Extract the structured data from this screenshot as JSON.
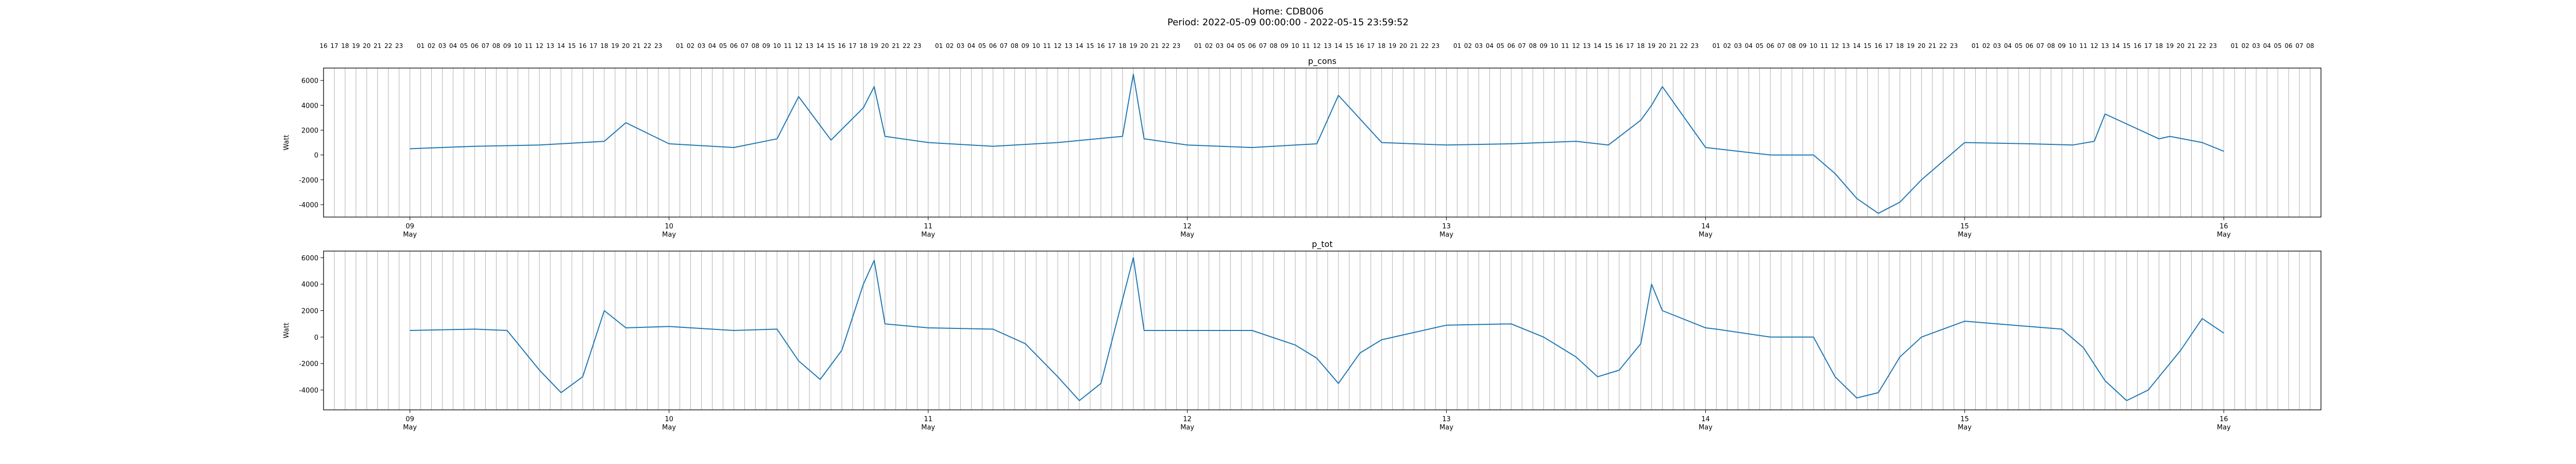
{
  "figure": {
    "title_line1": "Home: CDB006",
    "title_line2": "Period: 2022-05-09 00:00:00 - 2022-05-15 23:59:52"
  },
  "colors": {
    "series": "#1f77b4",
    "axes": "#000000",
    "hour_lines": "#b0b0b0"
  },
  "chart_data": [
    {
      "type": "line",
      "title": "p_cons",
      "ylabel": "Watt",
      "ylim": [
        -5000,
        7000
      ],
      "yticks": [
        -4000,
        -2000,
        0,
        2000,
        4000,
        6000
      ],
      "xlim": [
        "2022-05-08T16:00",
        "2022-05-16T09:00"
      ],
      "x_tick_labels": [
        {
          "x": "2022-05-09",
          "day": "09",
          "month": "May"
        },
        {
          "x": "2022-05-10",
          "day": "10",
          "month": "May"
        },
        {
          "x": "2022-05-11",
          "day": "11",
          "month": "May"
        },
        {
          "x": "2022-05-12",
          "day": "12",
          "month": "May"
        },
        {
          "x": "2022-05-13",
          "day": "13",
          "month": "May"
        },
        {
          "x": "2022-05-14",
          "day": "14",
          "month": "May"
        },
        {
          "x": "2022-05-15",
          "day": "15",
          "month": "May"
        },
        {
          "x": "2022-05-16",
          "day": "16",
          "month": "May"
        }
      ],
      "hour_axis": {
        "start": "2022-05-08T16:00",
        "end": "2022-05-16T08:00",
        "step_hours": 1
      },
      "grid": "vertical hourly lines",
      "x": [
        "2022-05-09T00:00",
        "2022-05-09T06:00",
        "2022-05-09T12:00",
        "2022-05-09T18:00",
        "2022-05-09T20:00",
        "2022-05-10T00:00",
        "2022-05-10T06:00",
        "2022-05-10T10:00",
        "2022-05-10T12:00",
        "2022-05-10T15:00",
        "2022-05-10T18:00",
        "2022-05-10T19:00",
        "2022-05-10T20:00",
        "2022-05-11T00:00",
        "2022-05-11T06:00",
        "2022-05-11T12:00",
        "2022-05-11T18:00",
        "2022-05-11T19:00",
        "2022-05-11T20:00",
        "2022-05-12T00:00",
        "2022-05-12T06:00",
        "2022-05-12T12:00",
        "2022-05-12T14:00",
        "2022-05-12T18:00",
        "2022-05-13T00:00",
        "2022-05-13T06:00",
        "2022-05-13T12:00",
        "2022-05-13T15:00",
        "2022-05-13T18:00",
        "2022-05-13T19:00",
        "2022-05-13T20:00",
        "2022-05-14T00:00",
        "2022-05-14T01:00",
        "2022-05-14T06:00",
        "2022-05-14T09:00",
        "2022-05-14T10:00",
        "2022-05-14T12:00",
        "2022-05-14T14:00",
        "2022-05-14T16:00",
        "2022-05-14T18:00",
        "2022-05-14T20:00",
        "2022-05-15T00:00",
        "2022-05-15T06:00",
        "2022-05-15T10:00",
        "2022-05-15T12:00",
        "2022-05-15T13:00",
        "2022-05-15T18:00",
        "2022-05-15T19:00",
        "2022-05-15T22:00",
        "2022-05-16T00:00"
      ],
      "values": [
        500,
        700,
        800,
        1100,
        2600,
        900,
        600,
        1300,
        4700,
        1200,
        3800,
        5500,
        1500,
        1000,
        700,
        1000,
        1500,
        6500,
        1300,
        800,
        600,
        900,
        4800,
        1000,
        800,
        900,
        1100,
        800,
        2800,
        4000,
        5500,
        600,
        500,
        0,
        0,
        0,
        -1500,
        -3500,
        -4700,
        -3800,
        -2000,
        1000,
        900,
        800,
        1100,
        3300,
        1300,
        1500,
        1000,
        300
      ]
    },
    {
      "type": "line",
      "title": "p_tot",
      "ylabel": "Watt",
      "ylim": [
        -5500,
        6500
      ],
      "yticks": [
        -4000,
        -2000,
        0,
        2000,
        4000,
        6000
      ],
      "xlim": [
        "2022-05-08T16:00",
        "2022-05-16T09:00"
      ],
      "x_tick_labels": [
        {
          "x": "2022-05-09",
          "day": "09",
          "month": "May"
        },
        {
          "x": "2022-05-10",
          "day": "10",
          "month": "May"
        },
        {
          "x": "2022-05-11",
          "day": "11",
          "month": "May"
        },
        {
          "x": "2022-05-12",
          "day": "12",
          "month": "May"
        },
        {
          "x": "2022-05-13",
          "day": "13",
          "month": "May"
        },
        {
          "x": "2022-05-14",
          "day": "14",
          "month": "May"
        },
        {
          "x": "2022-05-15",
          "day": "15",
          "month": "May"
        },
        {
          "x": "2022-05-16",
          "day": "16",
          "month": "May"
        }
      ],
      "hour_axis": {
        "start": "2022-05-08T16:00",
        "end": "2022-05-16T08:00",
        "step_hours": 1
      },
      "grid": "vertical hourly lines",
      "x": [
        "2022-05-09T00:00",
        "2022-05-09T06:00",
        "2022-05-09T09:00",
        "2022-05-09T12:00",
        "2022-05-09T14:00",
        "2022-05-09T16:00",
        "2022-05-09T18:00",
        "2022-05-09T20:00",
        "2022-05-10T00:00",
        "2022-05-10T06:00",
        "2022-05-10T10:00",
        "2022-05-10T12:00",
        "2022-05-10T14:00",
        "2022-05-10T16:00",
        "2022-05-10T18:00",
        "2022-05-10T19:00",
        "2022-05-10T20:00",
        "2022-05-11T00:00",
        "2022-05-11T06:00",
        "2022-05-11T09:00",
        "2022-05-11T12:00",
        "2022-05-11T14:00",
        "2022-05-11T16:00",
        "2022-05-11T19:00",
        "2022-05-11T20:00",
        "2022-05-12T00:00",
        "2022-05-12T06:00",
        "2022-05-12T10:00",
        "2022-05-12T12:00",
        "2022-05-12T14:00",
        "2022-05-12T16:00",
        "2022-05-12T18:00",
        "2022-05-13T00:00",
        "2022-05-13T06:00",
        "2022-05-13T09:00",
        "2022-05-13T12:00",
        "2022-05-13T14:00",
        "2022-05-13T16:00",
        "2022-05-13T18:00",
        "2022-05-13T19:00",
        "2022-05-13T20:00",
        "2022-05-14T00:00",
        "2022-05-14T01:00",
        "2022-05-14T06:00",
        "2022-05-14T09:00",
        "2022-05-14T10:00",
        "2022-05-14T12:00",
        "2022-05-14T14:00",
        "2022-05-14T16:00",
        "2022-05-14T18:00",
        "2022-05-14T20:00",
        "2022-05-15T00:00",
        "2022-05-15T06:00",
        "2022-05-15T09:00",
        "2022-05-15T11:00",
        "2022-05-15T13:00",
        "2022-05-15T15:00",
        "2022-05-15T17:00",
        "2022-05-15T20:00",
        "2022-05-15T22:00",
        "2022-05-16T00:00"
      ],
      "values": [
        500,
        600,
        500,
        -2500,
        -4200,
        -3000,
        2000,
        700,
        800,
        500,
        600,
        -1800,
        -3200,
        -1000,
        4000,
        5800,
        1000,
        700,
        600,
        -500,
        -3000,
        -4800,
        -3500,
        6000,
        500,
        500,
        500,
        -600,
        -1600,
        -3500,
        -1200,
        -200,
        900,
        1000,
        0,
        -1500,
        -3000,
        -2500,
        -500,
        4000,
        2000,
        700,
        600,
        0,
        0,
        0,
        -3000,
        -4600,
        -4200,
        -1500,
        0,
        1200,
        800,
        600,
        -800,
        -3300,
        -4800,
        -4000,
        -1000,
        1400,
        300
      ]
    }
  ]
}
